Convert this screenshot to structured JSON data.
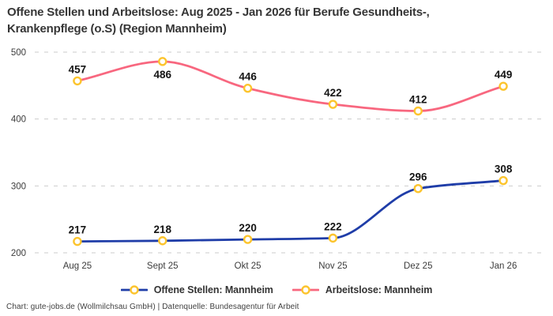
{
  "title": {
    "line1": "Offene Stellen und Arbeitslose: Aug 2025 - Jan 2026 für Berufe Gesundheits-,",
    "line2": "Krankenpflege (o.S) (Region Mannheim)"
  },
  "footer": "Chart: gute-jobs.de (Wollmilchsau GmbH) | Datenquelle: Bundesagentur für Arbeit",
  "colors": {
    "offene_stellen": "#1f3da8",
    "arbeitslose": "#f8677f",
    "marker_ring": "#fcc42d",
    "marker_fill": "#ffffff",
    "gridline": "#cbcbcb",
    "axis_text": "#3c3c3c",
    "data_label": "#141414"
  },
  "chart_data": {
    "type": "line",
    "title": "Offene Stellen und Arbeitslose: Aug 2025 - Jan 2026 für Berufe Gesundheits-, Krankenpflege (o.S) (Region Mannheim)",
    "categories": [
      "Aug 25",
      "Sept 25",
      "Okt 25",
      "Nov 25",
      "Dez 25",
      "Jan 26"
    ],
    "series": [
      {
        "name": "Offene Stellen: Mannheim",
        "color_key": "offene_stellen",
        "values": [
          217,
          218,
          220,
          222,
          296,
          308
        ]
      },
      {
        "name": "Arbeitslose: Mannheim",
        "color_key": "arbeitslose",
        "values": [
          457,
          486,
          446,
          422,
          412,
          449
        ]
      }
    ],
    "yticks": [
      200,
      300,
      400,
      500
    ],
    "ylim": [
      200,
      500
    ],
    "xlabel": "",
    "ylabel": "",
    "grid": "horizontal-dashed",
    "smoothing": "monotone",
    "legend_position": "bottom",
    "point_labels_visible": true
  }
}
